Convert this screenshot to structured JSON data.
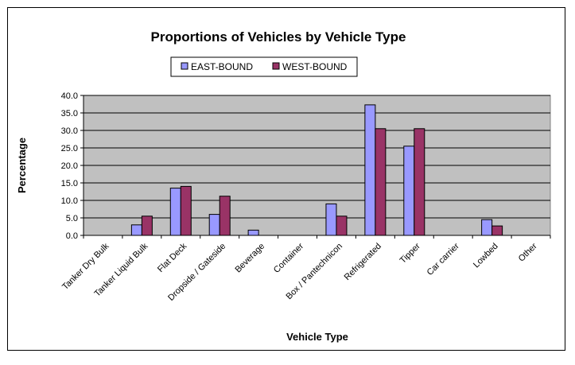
{
  "chart_data": {
    "type": "bar",
    "title": "Proportions of Vehicles by Vehicle Type",
    "xlabel": "Vehicle Type",
    "ylabel": "Percentage",
    "ylim": [
      0,
      40
    ],
    "yticks": [
      "0.0",
      "5.0",
      "10.0",
      "15.0",
      "20.0",
      "25.0",
      "30.0",
      "35.0",
      "40.0"
    ],
    "grid": true,
    "legend_position": "top-center",
    "categories": [
      "Tanker Dry Bulk",
      "Tanker Liquid Bulk",
      "Flat Deck",
      "Dropside / Gateside",
      "Beverage",
      "Container",
      "Box / Pantechnicon",
      "Refrigerated",
      "Tipper",
      "Car carrier",
      "Lowbed",
      "Other"
    ],
    "series": [
      {
        "name": "EAST-BOUND",
        "color": "#9999ff",
        "values": [
          0,
          3.0,
          13.5,
          6.0,
          1.5,
          0,
          9.0,
          37.3,
          25.5,
          0,
          4.5,
          0
        ]
      },
      {
        "name": "WEST-BOUND",
        "color": "#993366",
        "values": [
          0,
          5.5,
          14.0,
          11.2,
          0,
          0,
          5.5,
          30.5,
          30.5,
          0,
          2.7,
          0
        ]
      }
    ],
    "plot_background": "#c0c0c0"
  }
}
